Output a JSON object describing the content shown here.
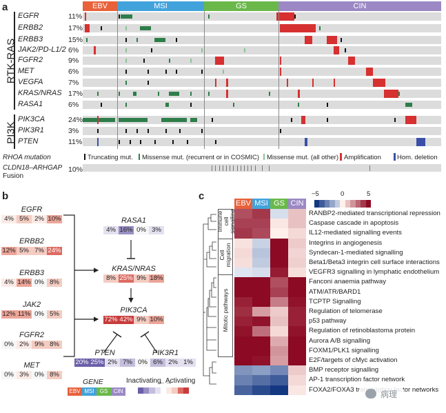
{
  "panel_labels": {
    "a": "a",
    "b": "b",
    "c": "c"
  },
  "colors": {
    "ebv": "#e8613a",
    "msi": "#42a3dc",
    "gs": "#6ab84a",
    "cin": "#9b88c4"
  },
  "subtypes": [
    "EBV",
    "MSI",
    "GS",
    "CIN"
  ],
  "panel_a": {
    "group_labels": {
      "rtk": "RTK-RAS",
      "pi3k": "PI3K"
    },
    "rows": [
      {
        "gene": "EGFR",
        "pct": "11%"
      },
      {
        "gene": "ERBB2",
        "pct": "17%"
      },
      {
        "gene": "ERBB3",
        "pct": "15%"
      },
      {
        "gene": "JAK2/PD-L1/2",
        "pct": "6%"
      },
      {
        "gene": "FGFR2",
        "pct": "9%"
      },
      {
        "gene": "MET",
        "pct": "6%"
      },
      {
        "gene": "VEGFA",
        "pct": "7%"
      },
      {
        "gene": "KRAS/NRAS",
        "pct": "17%"
      },
      {
        "gene": "RASA1",
        "pct": "6%"
      },
      {
        "gene": "PIK3CA",
        "pct": "24%"
      },
      {
        "gene": "PIK3R1",
        "pct": "3%"
      },
      {
        "gene": "PTEN",
        "pct": "11%"
      }
    ],
    "legend": {
      "rhoa": "RHOA mutation",
      "truncating": "Truncating mut.",
      "missense_rec": "Missense mut. (recurrent or in COSMIC)",
      "missense_all": "Missense mut. (all other)",
      "amplification": "Amplification",
      "hom_deletion": "Hom. deletion"
    },
    "fusion": {
      "label1": "CLDN18–ARHGAP",
      "label2": "Fusion",
      "pct": "10%"
    }
  },
  "panel_b": {
    "genes": [
      {
        "name": "EGFR",
        "vals": [
          "4%",
          "5%",
          "2%",
          "10%"
        ]
      },
      {
        "name": "ERBB2",
        "vals": [
          "12%",
          "5%",
          "7%",
          "24%"
        ]
      },
      {
        "name": "ERBB3",
        "vals": [
          "4%",
          "14%",
          "0%",
          "8%"
        ]
      },
      {
        "name": "JAK2",
        "vals": [
          "12%",
          "11%",
          "0%",
          "5%"
        ]
      },
      {
        "name": "FGFR2",
        "vals": [
          "0%",
          "2%",
          "9%",
          "8%"
        ]
      },
      {
        "name": "MET",
        "vals": [
          "0%",
          "3%",
          "0%",
          "8%"
        ]
      },
      {
        "name": "RASA1",
        "vals": [
          "4%",
          "16%",
          "0%",
          "3%"
        ]
      },
      {
        "name": "KRAS/NRAS",
        "vals": [
          "8%",
          "25%",
          "9%",
          "18%"
        ]
      },
      {
        "name": "PIK3CA",
        "vals": [
          "72%",
          "42%",
          "9%",
          "10%"
        ]
      },
      {
        "name": "PTEN",
        "vals": [
          "20%",
          "25%",
          "2%",
          "7%"
        ]
      },
      {
        "name": "PIK3R1",
        "vals": [
          "0%",
          "6%",
          "2%",
          "1%"
        ]
      }
    ],
    "legend": {
      "gene": "GENE",
      "inactivating": "Inactivating",
      "activating": "Activating"
    }
  },
  "panel_c": {
    "scale": {
      "min": "−5",
      "mid": "0",
      "max": "5"
    },
    "clusters": [
      "Immune cell signalling",
      "Cell migration",
      "Mitotic pathways"
    ],
    "pathways": [
      {
        "name": "RANBP2-mediated transcriptional repression",
        "vals": [
          3.5,
          4,
          -0.5,
          1
        ]
      },
      {
        "name": "Caspase cascade in apoptosis",
        "vals": [
          3.8,
          3.8,
          0.2,
          1
        ]
      },
      {
        "name": "IL12-mediated signalling events",
        "vals": [
          4,
          3.6,
          0,
          0.5
        ]
      },
      {
        "name": "Integrins in angiogenesis",
        "vals": [
          0.3,
          -0.8,
          5,
          0.8
        ]
      },
      {
        "name": "Syndecan-1-mediated signalling",
        "vals": [
          0.5,
          -1.2,
          5,
          0.6
        ]
      },
      {
        "name": "Beta1/Beta3 integrin cell surface interactions",
        "vals": [
          0.4,
          -1,
          5,
          0.7
        ]
      },
      {
        "name": "VEGFR3 signalling in lymphatic endothelium",
        "vals": [
          -0.3,
          -0.5,
          4.6,
          0.4
        ]
      },
      {
        "name": "Fanconi anaemia pathway",
        "vals": [
          5,
          5,
          3.5,
          5
        ]
      },
      {
        "name": "ATM/ATR/BARD1",
        "vals": [
          5,
          5,
          3.8,
          5
        ]
      },
      {
        "name": "TCPTP Signalling",
        "vals": [
          4.5,
          5,
          2.5,
          4.8
        ]
      },
      {
        "name": "Regulation of telomerase",
        "vals": [
          4.2,
          1.8,
          0.8,
          4.5
        ]
      },
      {
        "name": "p53 pathway",
        "vals": [
          4.5,
          4.8,
          1,
          4.5
        ]
      },
      {
        "name": "Regulation of retinoblastoma protein",
        "vals": [
          4.8,
          2.8,
          0.5,
          4.8
        ]
      },
      {
        "name": "Aurora A/B signalling",
        "vals": [
          5,
          5,
          1.5,
          5
        ]
      },
      {
        "name": "FOXM1/PLK1 signalling",
        "vals": [
          5,
          5,
          2,
          5
        ]
      },
      {
        "name": "E2F/targets of cMyc activation",
        "vals": [
          5,
          4.8,
          1.8,
          5
        ]
      },
      {
        "name": "BMP receptor signalling",
        "vals": [
          -2.5,
          -2.2,
          -2.8,
          0.8
        ]
      },
      {
        "name": "AP-1 transcription factor network",
        "vals": [
          -3,
          -3.5,
          -4,
          0.5
        ]
      },
      {
        "name": "FOXA2/FOXA3 transcription factor networks",
        "vals": [
          -3.8,
          -4.5,
          -5,
          0.2
        ]
      }
    ]
  },
  "watermark": "病理"
}
